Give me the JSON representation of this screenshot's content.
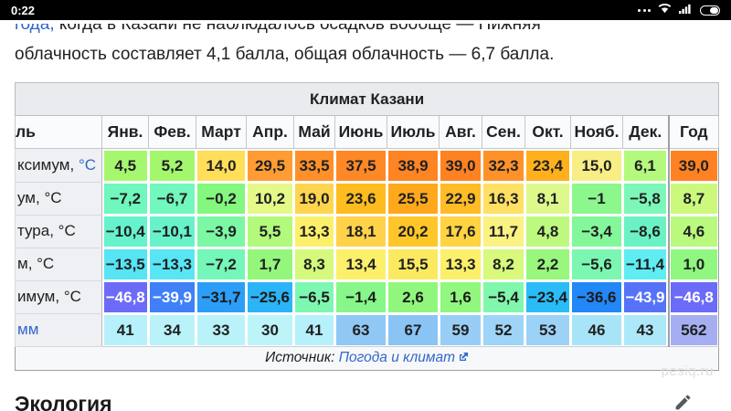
{
  "status_bar": {
    "time": "0:22"
  },
  "intro": {
    "clipped_line": {
      "blue": "года,",
      "text": " когда в Казани не наблюдалось осадков вообще — Нижняя"
    },
    "line2": "облачность составляет 4,1 балла, общая облачность — 6,7 балла."
  },
  "table": {
    "title": "Климат Казани",
    "col_label": "ль",
    "months": [
      "Янв.",
      "Фев.",
      "Март",
      "Апр.",
      "Май",
      "Июнь",
      "Июль",
      "Авг.",
      "Сен.",
      "Окт.",
      "Нояб.",
      "Дек.",
      "Год"
    ],
    "rows": [
      {
        "label": [
          {
            "t": "ксимум, "
          },
          {
            "t": "°C",
            "link": true
          }
        ],
        "values": [
          "4,5",
          "5,2",
          "14,0",
          "29,5",
          "33,5",
          "37,5",
          "38,9",
          "39,0",
          "32,3",
          "23,4",
          "15,0",
          "6,1",
          "39,0"
        ],
        "bg": [
          "#a6f770",
          "#a3f76d",
          "#ffde59",
          "#ff9c33",
          "#ff9029",
          "#ff8826",
          "#ff8424",
          "#ff8222",
          "#ff9129",
          "#ffb01c",
          "#f9ed86",
          "#b4f97e",
          "#ff8222"
        ]
      },
      {
        "label": [
          {
            "t": "ум, °C"
          }
        ],
        "values": [
          "−7,2",
          "−6,7",
          "−0,2",
          "10,2",
          "19,0",
          "23,6",
          "25,5",
          "22,9",
          "16,3",
          "8,1",
          "−1",
          "−5,8",
          "8,7"
        ],
        "bg": [
          "#70f7be",
          "#72f7bc",
          "#84f77e",
          "#e4f988",
          "#ffd54f",
          "#ffbc1f",
          "#ffa81c",
          "#ffbc26",
          "#ffe063",
          "#ddf98c",
          "#8cf78c",
          "#7cf7b8",
          "#ccf97c"
        ]
      },
      {
        "label": [
          {
            "t": "тура, °C"
          }
        ],
        "values": [
          "−10,4",
          "−10,1",
          "−3,9",
          "5,5",
          "13,3",
          "18,1",
          "20,2",
          "17,6",
          "11,7",
          "4,8",
          "−3,4",
          "−8,6",
          "4,6"
        ],
        "bg": [
          "#66f2cc",
          "#67f2ca",
          "#7cf7a4",
          "#b2f97c",
          "#fcf06b",
          "#ffd24a",
          "#ffc629",
          "#ffd342",
          "#faf283",
          "#bdf97e",
          "#84f79b",
          "#6bf2c4",
          "#b8f97e"
        ]
      },
      {
        "label": [
          {
            "t": "м, °C"
          }
        ],
        "values": [
          "−13,5",
          "−13,3",
          "−7,2",
          "1,7",
          "8,3",
          "13,4",
          "15,5",
          "13,3",
          "8,2",
          "2,2",
          "−5,6",
          "−11,4",
          "1,0"
        ],
        "bg": [
          "#57e4f4",
          "#58e6f4",
          "#74f7b8",
          "#94f77c",
          "#d4f97c",
          "#fcf06b",
          "#fbea60",
          "#fcf06b",
          "#d8f97c",
          "#98f77c",
          "#7cf7b2",
          "#5fedf2",
          "#90f780"
        ]
      },
      {
        "label": [
          {
            "t": "имум, °C"
          }
        ],
        "values": [
          "−46,8",
          "−39,9",
          "−31,7",
          "−25,6",
          "−6,5",
          "−1,4",
          "2,6",
          "1,6",
          "−5,4",
          "−23,4",
          "−36,6",
          "−43,9",
          "−46,8"
        ],
        "bg": [
          "#6b6bf7",
          "#4080f7",
          "#2c9ef7",
          "#2bb4f7",
          "#7ef7b0",
          "#86f788",
          "#90f77c",
          "#92f77e",
          "#80f7ac",
          "#29bcf7",
          "#2287f7",
          "#5673f7",
          "#6b6bf7"
        ],
        "fg": [
          "#ffffff",
          "#ffffff",
          "#1b1b1b",
          "#1b1b1b",
          "#1b1b1b",
          "#1b1b1b",
          "#1b1b1b",
          "#1b1b1b",
          "#1b1b1b",
          "#1b1b1b",
          "#1b1b1b",
          "#ffffff",
          "#ffffff"
        ]
      },
      {
        "label": [
          {
            "t": "мм",
            "link": true
          }
        ],
        "values": [
          "41",
          "34",
          "33",
          "30",
          "41",
          "63",
          "67",
          "59",
          "52",
          "53",
          "46",
          "43",
          "562"
        ],
        "bg": [
          "#b6f0fa",
          "#baf2fa",
          "#baf2fa",
          "#bcf4fa",
          "#b6f0fa",
          "#8fc8f5",
          "#8ac4f5",
          "#98cef5",
          "#9ed4f7",
          "#9dd2f7",
          "#a8e4f7",
          "#ace8f9",
          "#a6aef2"
        ]
      }
    ],
    "source_prefix": "Источник: ",
    "source_link": "Погода и климат"
  },
  "watermark": "pesiq.ru",
  "section_title": "Экология",
  "colors": {
    "link": "#3366cc",
    "status_bar_bg": "#000000"
  }
}
